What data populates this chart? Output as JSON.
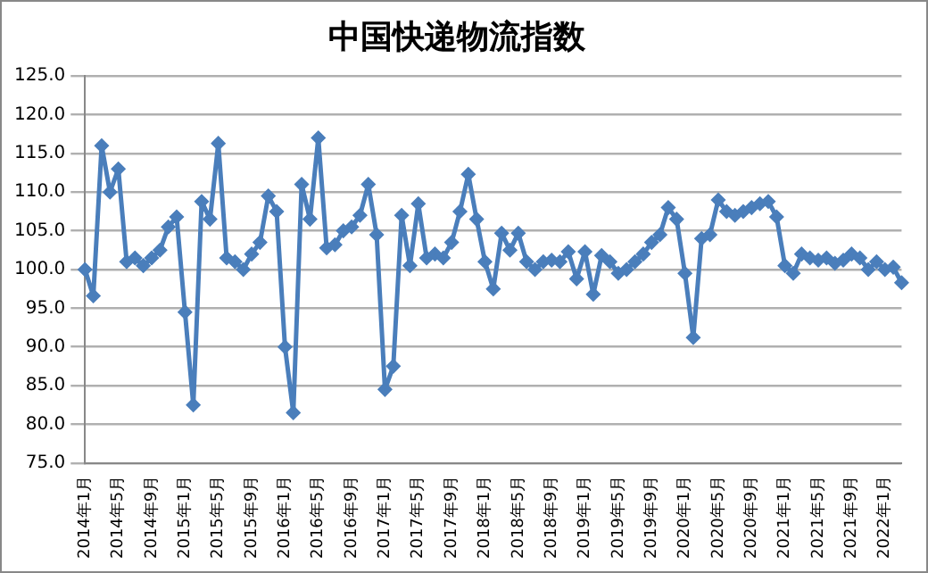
{
  "chart_data": {
    "type": "line",
    "title": "中国快递物流指数",
    "categories": [
      "2014年1月",
      null,
      null,
      null,
      "2014年5月",
      null,
      null,
      null,
      "2014年9月",
      null,
      null,
      null,
      "2015年1月",
      null,
      null,
      null,
      "2015年5月",
      null,
      null,
      null,
      "2015年9月",
      null,
      null,
      null,
      "2016年1月",
      null,
      null,
      null,
      "2016年5月",
      null,
      null,
      null,
      "2016年9月",
      null,
      null,
      null,
      "2017年1月",
      null,
      null,
      null,
      "2017年5月",
      null,
      null,
      null,
      "2017年9月",
      null,
      null,
      null,
      "2018年1月",
      null,
      null,
      null,
      "2018年5月",
      null,
      null,
      null,
      "2018年9月",
      null,
      null,
      null,
      "2019年1月",
      null,
      null,
      null,
      "2019年5月",
      null,
      null,
      null,
      "2019年9月",
      null,
      null,
      null,
      "2020年1月",
      null,
      null,
      null,
      "2020年5月",
      null,
      null,
      null,
      "2020年9月",
      null,
      null,
      null,
      "2021年1月",
      null,
      null,
      null,
      "2021年5月",
      null,
      null,
      null,
      "2021年9月",
      null,
      null,
      null,
      "2022年1月",
      null,
      null
    ],
    "series": [
      {
        "color": "#4a7ebb",
        "values": [
          100,
          96.6,
          116,
          110,
          113,
          101,
          101.5,
          100.5,
          101.5,
          102.5,
          105.5,
          106.8,
          94.5,
          82.5,
          108.8,
          106.5,
          116.3,
          101.5,
          101,
          100,
          102,
          103.5,
          109.5,
          107.5,
          90,
          81.5,
          111,
          106.5,
          117,
          102.8,
          103.2,
          105,
          105.5,
          107,
          111,
          104.5,
          84.5,
          87.5,
          107,
          100.5,
          108.5,
          101.5,
          102,
          101.5,
          103.5,
          107.5,
          112.3,
          106.5,
          101,
          97.5,
          104.7,
          102.5,
          104.7,
          101,
          100,
          101,
          101.2,
          101,
          102.3,
          98.8,
          102.3,
          96.8,
          101.8,
          101,
          99.5,
          100,
          101,
          102,
          103.5,
          104.5,
          108,
          106.5,
          99.5,
          91.2,
          104,
          104.5,
          109,
          107.5,
          107,
          107.5,
          108,
          108.5,
          108.8,
          106.8,
          100.5,
          99.5,
          102,
          101.5,
          101.2,
          101.5,
          100.8,
          101.2,
          102,
          101.5,
          100,
          101,
          100,
          100.3,
          98.3
        ]
      }
    ],
    "ylim": [
      75,
      125
    ],
    "yticks": [
      {
        "value": 75,
        "label": "75.0"
      },
      {
        "value": 80,
        "label": "80.0"
      },
      {
        "value": 85,
        "label": "85.0"
      },
      {
        "value": 90,
        "label": "90.0"
      },
      {
        "value": 95,
        "label": "95.0"
      },
      {
        "value": 100,
        "label": "100.0"
      },
      {
        "value": 105,
        "label": "105.0"
      },
      {
        "value": 110,
        "label": "110.0"
      },
      {
        "value": 115,
        "label": "115.0"
      },
      {
        "value": 120,
        "label": "120.0"
      },
      {
        "value": 125,
        "label": "125.0"
      }
    ],
    "grid": "y",
    "legend": false,
    "marker": "diamond",
    "line_style": "solid"
  }
}
